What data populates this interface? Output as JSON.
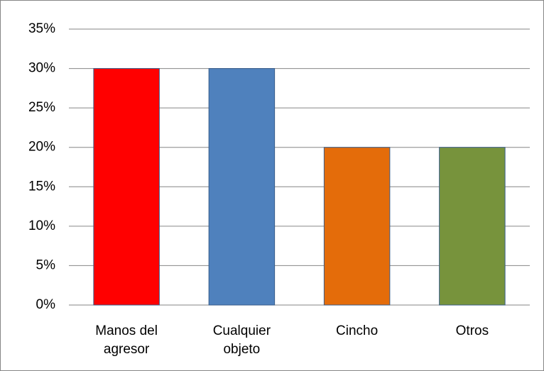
{
  "chart_data": {
    "type": "bar",
    "categories": [
      "Manos del agresor",
      "Cualquier objeto",
      "Cincho",
      "Otros"
    ],
    "values": [
      30,
      30,
      20,
      20
    ],
    "colors": [
      "#ff0000",
      "#4f81bd",
      "#e46c0a",
      "#77933c"
    ],
    "ylim": [
      0,
      35
    ],
    "yticks": [
      {
        "value": 0,
        "label": "0%"
      },
      {
        "value": 5,
        "label": "5%"
      },
      {
        "value": 10,
        "label": "10%"
      },
      {
        "value": 15,
        "label": "15%"
      },
      {
        "value": 20,
        "label": "20%"
      },
      {
        "value": 25,
        "label": "25%"
      },
      {
        "value": 30,
        "label": "30%"
      },
      {
        "value": 35,
        "label": "35%"
      }
    ],
    "grid": true
  }
}
